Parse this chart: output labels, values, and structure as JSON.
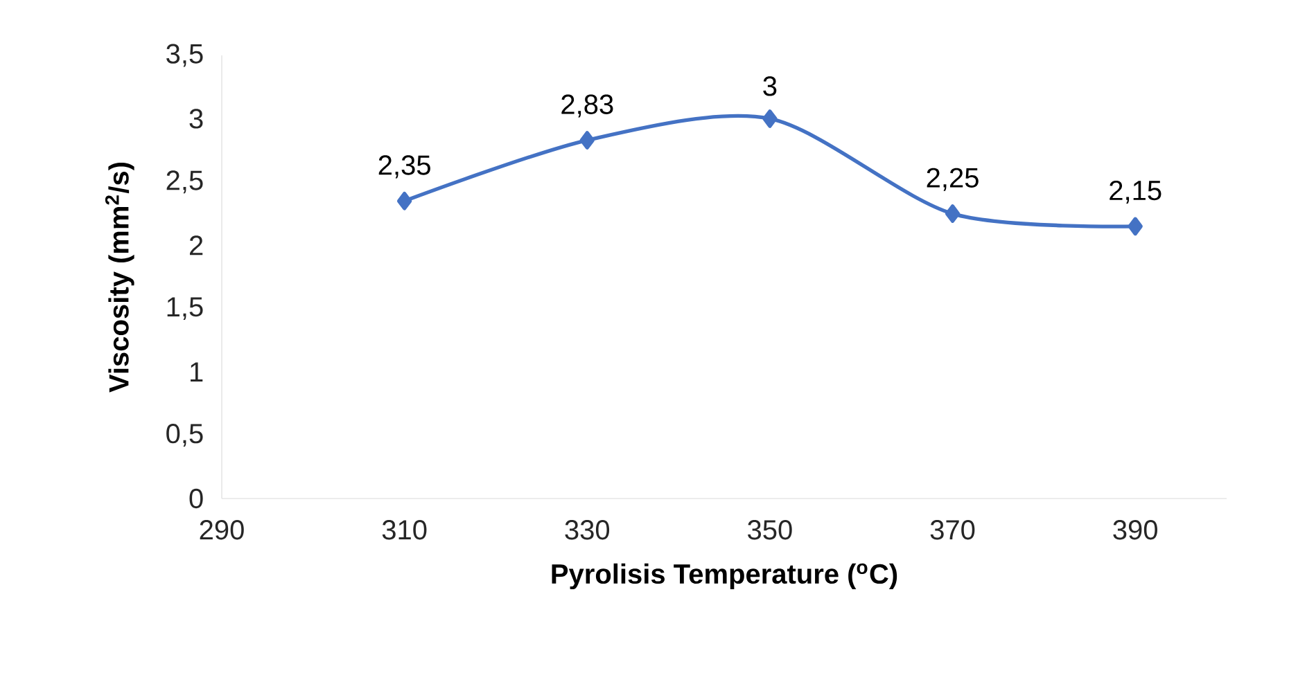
{
  "chart_data": {
    "type": "line",
    "xlabel": "Pyrolisis Temperature ($^{o}$C)",
    "ylabel": "Viscosity (mm$^{2}$/s)",
    "x": [
      310,
      330,
      350,
      370,
      390
    ],
    "values": [
      2.35,
      2.83,
      3,
      2.25,
      2.15
    ],
    "value_labels": [
      "2,35",
      "2,83",
      "3",
      "2,25",
      "2,15"
    ],
    "color": "#4472c4",
    "marker": "diamond",
    "line_style": "solid",
    "grid": false,
    "xlim": [
      290,
      400
    ],
    "xticks": [
      290,
      310,
      330,
      350,
      370,
      390
    ],
    "ylim": [
      0,
      3.5
    ],
    "yticks": [
      0,
      {
        "value": 0.5,
        "label": "0,5"
      },
      1,
      {
        "value": 1.5,
        "label": "1,5"
      },
      2,
      {
        "value": 2.5,
        "label": "2,5"
      },
      3,
      {
        "value": 3.5,
        "label": "3,5"
      }
    ]
  }
}
